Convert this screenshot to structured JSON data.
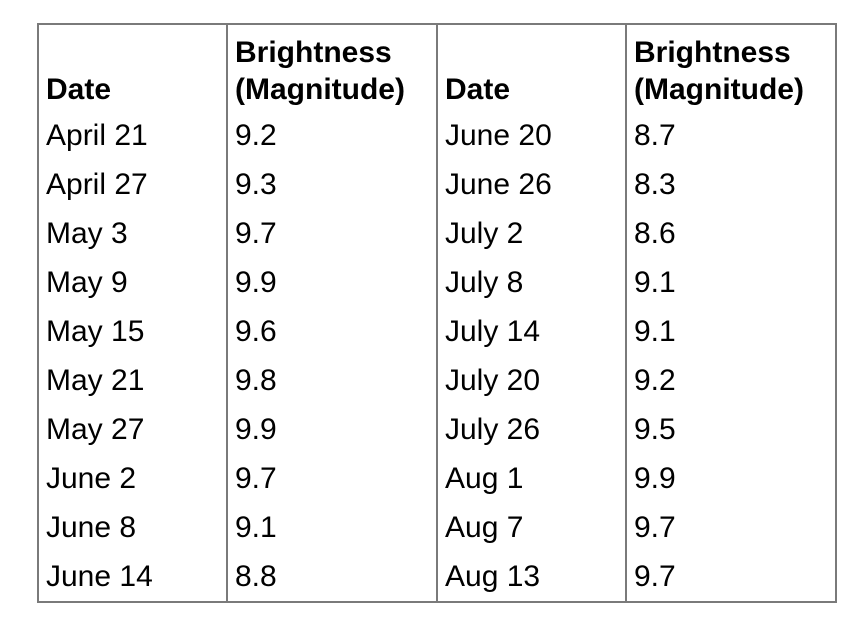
{
  "table": {
    "headers": {
      "date_left": "Date",
      "brightness_left": [
        "Brightness",
        "(Magnitude)"
      ],
      "date_right": "Date",
      "brightness_right": [
        "Brightness",
        "(Magnitude)"
      ]
    },
    "rows": [
      {
        "date_left": "April 21",
        "brightness_left": "9.2",
        "date_right": "June 20",
        "brightness_right": "8.7"
      },
      {
        "date_left": "April 27",
        "brightness_left": "9.3",
        "date_right": "June 26",
        "brightness_right": "8.3"
      },
      {
        "date_left": "May 3",
        "brightness_left": "9.7",
        "date_right": "July 2",
        "brightness_right": "8.6"
      },
      {
        "date_left": "May 9",
        "brightness_left": "9.9",
        "date_right": "July 8",
        "brightness_right": "9.1"
      },
      {
        "date_left": "May 15",
        "brightness_left": "9.6",
        "date_right": "July 14",
        "brightness_right": "9.1"
      },
      {
        "date_left": "May 21",
        "brightness_left": "9.8",
        "date_right": "July 20",
        "brightness_right": "9.2"
      },
      {
        "date_left": "May 27",
        "brightness_left": "9.9",
        "date_right": "July 26",
        "brightness_right": "9.5"
      },
      {
        "date_left": "June 2",
        "brightness_left": "9.7",
        "date_right": "Aug 1",
        "brightness_right": "9.9"
      },
      {
        "date_left": "June 8",
        "brightness_left": "9.1",
        "date_right": "Aug 7",
        "brightness_right": "9.7"
      },
      {
        "date_left": "June 14",
        "brightness_left": "8.8",
        "date_right": "Aug 13",
        "brightness_right": "9.7"
      }
    ]
  }
}
